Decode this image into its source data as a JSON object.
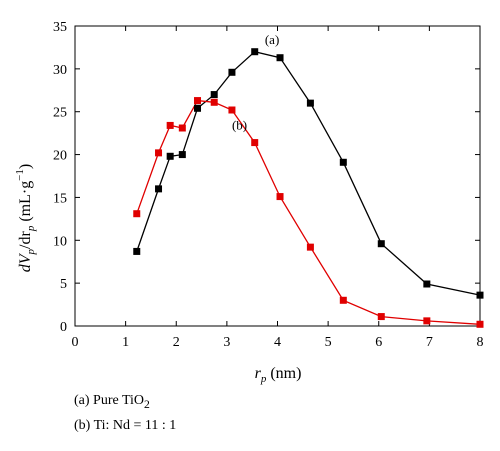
{
  "chart_data": {
    "type": "line",
    "xlabel": "r_p (nm)",
    "xlabel_parts": {
      "r": "r",
      "sub": "p",
      "unit": " (nm)"
    },
    "ylabel": "dV_p/dr_p (mL·g^-1)",
    "ylabel_parts": {
      "d": "d",
      "V": "V",
      "p1": "p",
      "mid": "/dr",
      "p2": "p",
      "unit_open": " (mL·g",
      "exp": "−1",
      "unit_close": ")"
    },
    "xlim": [
      0,
      8
    ],
    "ylim": [
      0,
      35
    ],
    "xticks": [
      "0",
      "1",
      "2",
      "3",
      "4",
      "5",
      "6",
      "7",
      "8"
    ],
    "yticks": [
      "0",
      "5",
      "10",
      "15",
      "20",
      "25",
      "30",
      "35"
    ],
    "grid": false,
    "series": [
      {
        "name": "(a) Pure TiO2",
        "label": "(a)",
        "color": "#000000",
        "marker": "square",
        "x": [
          1.22,
          1.65,
          1.88,
          2.12,
          2.42,
          2.75,
          3.1,
          3.55,
          4.05,
          4.65,
          5.3,
          6.05,
          6.95,
          8.0
        ],
        "y": [
          8.7,
          16.0,
          19.8,
          20.0,
          25.4,
          27.0,
          29.6,
          32.0,
          31.3,
          26.0,
          19.1,
          9.6,
          4.9,
          3.6
        ]
      },
      {
        "name": "(b) Ti: Nd = 11 : 1",
        "label": "(b)",
        "color": "#e00000",
        "marker": "square",
        "x": [
          1.22,
          1.65,
          1.88,
          2.12,
          2.42,
          2.75,
          3.1,
          3.55,
          4.05,
          4.65,
          5.3,
          6.05,
          6.95,
          8.0
        ],
        "y": [
          13.1,
          20.2,
          23.4,
          23.1,
          26.3,
          26.1,
          25.2,
          21.4,
          15.1,
          9.2,
          3.0,
          1.1,
          0.6,
          0.2
        ]
      }
    ],
    "annotations": [
      {
        "text": "(a)",
        "x": 3.75,
        "y": 32.9
      },
      {
        "text": "(b)",
        "x": 3.1,
        "y": 22.9
      }
    ],
    "legend": {
      "placement": "bottom-left",
      "items": [
        {
          "prefix": "(a)  Pure TiO",
          "sub": "2"
        },
        {
          "prefix": "(b)  Ti: Nd = 11 : 1",
          "sub": ""
        }
      ]
    }
  }
}
